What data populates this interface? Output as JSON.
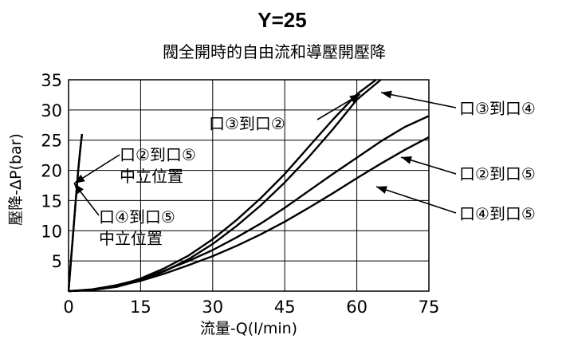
{
  "chart_data": {
    "type": "line",
    "title": "Y=25",
    "subtitle": "閥全開時的自由流和導壓開壓降",
    "xlabel": "流量-Q(l/min)",
    "ylabel": "壓降-ΔP(bar)",
    "xlim": [
      0,
      75
    ],
    "ylim": [
      0,
      35
    ],
    "x_ticks": [
      0,
      15,
      30,
      45,
      60,
      75
    ],
    "y_ticks": [
      5,
      10,
      15,
      20,
      25,
      30,
      35
    ],
    "grid": true,
    "series": [
      {
        "name": "口②到口⑤ 中立位置",
        "points": [
          [
            0,
            0
          ],
          [
            0.5,
            5
          ],
          [
            1,
            10
          ],
          [
            1.5,
            15
          ],
          [
            2,
            20
          ],
          [
            2.5,
            24
          ],
          [
            2.8,
            26
          ]
        ]
      },
      {
        "name": "口④到口⑤ 中立位置",
        "points": [
          [
            0,
            0
          ],
          [
            0.5,
            5
          ],
          [
            1,
            10
          ],
          [
            1.5,
            15
          ],
          [
            2,
            20
          ],
          [
            2.5,
            24
          ],
          [
            2.8,
            26
          ]
        ]
      },
      {
        "name": "口③到口②",
        "points": [
          [
            0,
            0
          ],
          [
            5,
            0.2
          ],
          [
            10,
            0.8
          ],
          [
            15,
            2.1
          ],
          [
            20,
            3.8
          ],
          [
            25,
            5.9
          ],
          [
            30,
            8.6
          ],
          [
            35,
            11.8
          ],
          [
            40,
            15.4
          ],
          [
            45,
            19.4
          ],
          [
            50,
            23.9
          ],
          [
            55,
            28.4
          ],
          [
            60,
            32.6
          ],
          [
            64,
            35
          ]
        ]
      },
      {
        "name": "口③到口④",
        "points": [
          [
            0,
            0
          ],
          [
            5,
            0.2
          ],
          [
            10,
            0.7
          ],
          [
            15,
            1.8
          ],
          [
            20,
            3.3
          ],
          [
            25,
            5.3
          ],
          [
            30,
            7.8
          ],
          [
            35,
            10.8
          ],
          [
            40,
            14.2
          ],
          [
            45,
            18.0
          ],
          [
            50,
            22.2
          ],
          [
            55,
            26.8
          ],
          [
            60,
            31.7
          ],
          [
            65,
            35
          ]
        ]
      },
      {
        "name": "口②到口⑤",
        "points": [
          [
            0,
            0
          ],
          [
            5,
            0.3
          ],
          [
            10,
            1.0
          ],
          [
            15,
            2.0
          ],
          [
            20,
            3.4
          ],
          [
            25,
            5.0
          ],
          [
            30,
            6.8
          ],
          [
            35,
            8.9
          ],
          [
            40,
            11.2
          ],
          [
            45,
            13.8
          ],
          [
            50,
            16.6
          ],
          [
            55,
            19.4
          ],
          [
            60,
            22.1
          ],
          [
            65,
            24.8
          ],
          [
            70,
            27.2
          ],
          [
            75,
            29.0
          ]
        ]
      },
      {
        "name": "口④到口⑤",
        "points": [
          [
            0,
            0
          ],
          [
            5,
            0.2
          ],
          [
            10,
            0.8
          ],
          [
            15,
            1.7
          ],
          [
            20,
            2.9
          ],
          [
            25,
            4.3
          ],
          [
            30,
            5.8
          ],
          [
            35,
            7.5
          ],
          [
            40,
            9.4
          ],
          [
            45,
            11.5
          ],
          [
            50,
            13.8
          ],
          [
            55,
            16.2
          ],
          [
            60,
            18.7
          ],
          [
            65,
            21.1
          ],
          [
            70,
            23.4
          ],
          [
            75,
            25.5
          ]
        ]
      }
    ],
    "annotations": [
      {
        "text": "口②到口⑤",
        "sub": "中立位置"
      },
      {
        "text": "口④到口⑤",
        "sub": "中立位置"
      },
      {
        "text": "口③到口②"
      },
      {
        "text": "口③到口④"
      },
      {
        "text": "口②到口⑤"
      },
      {
        "text": "口④到口⑤"
      }
    ]
  }
}
